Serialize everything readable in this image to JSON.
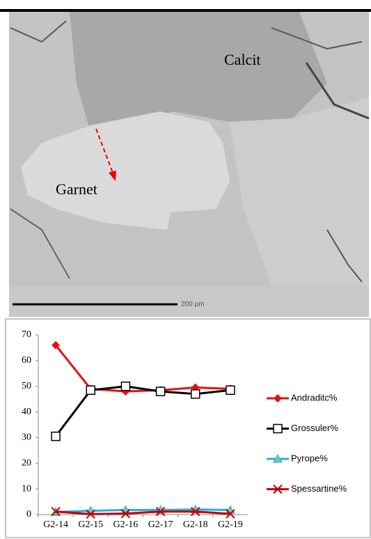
{
  "image": {
    "labels": [
      "Calcit",
      "Garnet"
    ],
    "scale_bar": "200 µm"
  },
  "chart_data": {
    "type": "line",
    "categories": [
      "G2-14",
      "G2-15",
      "G2-16",
      "G2-17",
      "G2-18",
      "G2-19"
    ],
    "series": [
      {
        "name": "Andraditc%",
        "color": "#e81010",
        "marker": "diamond",
        "values": [
          66,
          49,
          48,
          48.5,
          49.5,
          49
        ]
      },
      {
        "name": "Grossuler%",
        "color": "#000000",
        "marker": "square",
        "values": [
          30.5,
          48.5,
          50,
          48,
          47,
          48.5
        ]
      },
      {
        "name": "Pyrope%",
        "color": "#22aee0",
        "marker": "triangle",
        "values": [
          1,
          1.5,
          1.8,
          1.8,
          2,
          1.8
        ]
      },
      {
        "name": "Spessartine%",
        "color": "#c00000",
        "marker": "x",
        "values": [
          1.2,
          0.2,
          0.4,
          1.2,
          1.2,
          0.3
        ]
      }
    ],
    "ylim": [
      0,
      70
    ],
    "yticks": [
      0,
      10,
      20,
      30,
      40,
      50,
      60,
      70
    ],
    "grid": false,
    "legend": "right"
  }
}
